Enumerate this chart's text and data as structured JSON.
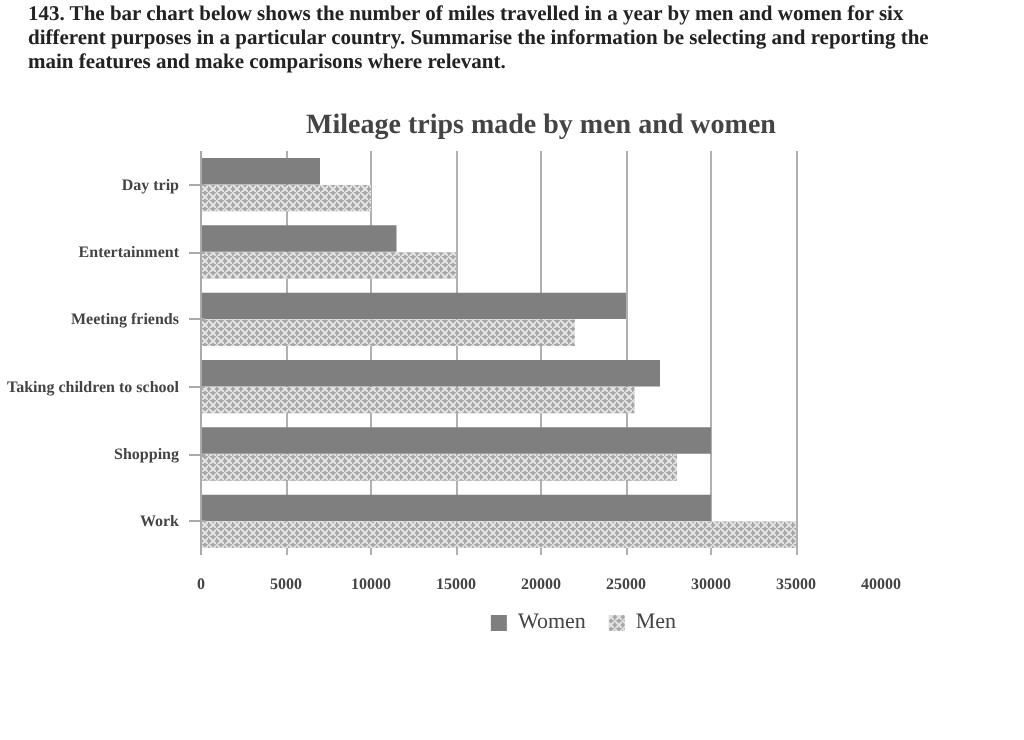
{
  "chart_data": {
    "type": "bar",
    "orientation": "horizontal",
    "title": "Mileage trips made by men and women",
    "annotations": [
      "143. The bar chart below shows the number of miles travelled in a year by men and women for six different purposes in a particular country. Summarise the information be selecting and reporting the main features and make comparisons where relevant."
    ],
    "categories": [
      "Day trip",
      "Entertainment",
      "Meeting friends",
      "Taking children to school",
      "Shopping",
      "Work"
    ],
    "series": [
      {
        "name": "Women",
        "color": "#7f7f7f",
        "values": [
          7000,
          11500,
          25000,
          27000,
          30000,
          30000
        ]
      },
      {
        "name": "Men",
        "color": "#a6a6a6",
        "values": [
          10000,
          15000,
          22000,
          25500,
          28000,
          35000
        ]
      }
    ],
    "xlim": [
      0,
      40000
    ],
    "xticks": [
      0,
      5000,
      10000,
      15000,
      20000,
      25000,
      30000,
      35000,
      40000
    ],
    "grid": "x",
    "legend": "bottom"
  }
}
